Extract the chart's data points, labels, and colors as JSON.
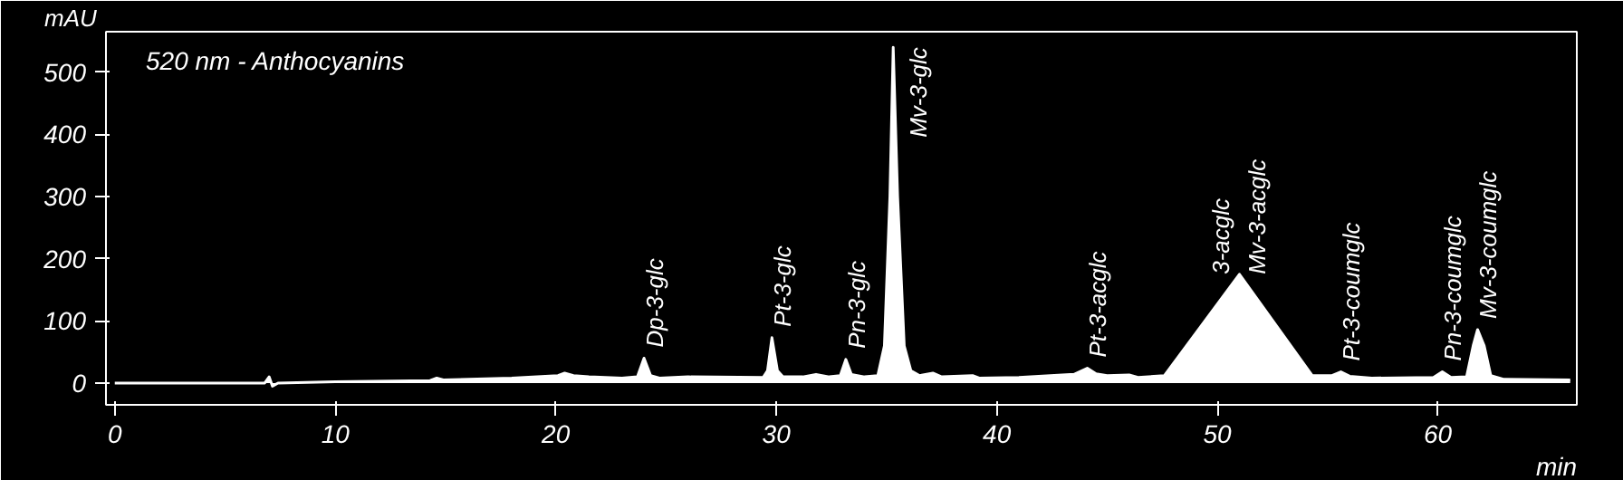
{
  "chart_data": {
    "type": "area",
    "title": "520 nm - Anthocyanins",
    "xlabel": "min",
    "ylabel": "mAU",
    "x": [
      0,
      6.8,
      7.0,
      7.15,
      7.4,
      10,
      14.3,
      14.6,
      14.9,
      18,
      20.1,
      20.4,
      20.8,
      21.5,
      23,
      23.7,
      24.0,
      24.3,
      24.7,
      26,
      29.4,
      29.6,
      29.8,
      30.05,
      30.3,
      31.2,
      31.8,
      32.4,
      32.9,
      33.15,
      33.4,
      34.0,
      34.6,
      34.9,
      35.15,
      35.3,
      35.5,
      35.8,
      36.1,
      36.5,
      37.1,
      37.5,
      38.9,
      39.2,
      41,
      43.5,
      44.1,
      44.5,
      45,
      46,
      46.4,
      47.6,
      51.0,
      54.3,
      55.2,
      55.6,
      56.0,
      57,
      59.8,
      60.2,
      60.6,
      61.3,
      61.6,
      61.8,
      62.1,
      62.4,
      63,
      66
    ],
    "series": [
      {
        "color": "#ffffff",
        "values": [
          0,
          0,
          10,
          -5,
          0,
          2,
          4,
          8,
          5,
          8,
          12,
          16,
          12,
          10,
          8,
          10,
          40,
          12,
          8,
          10,
          9,
          20,
          73,
          20,
          10,
          10,
          14,
          10,
          12,
          38,
          14,
          10,
          12,
          60,
          300,
          540,
          300,
          60,
          20,
          12,
          16,
          10,
          12,
          8,
          9,
          14,
          24,
          15,
          12,
          13,
          9,
          12,
          175,
          12,
          12,
          18,
          11,
          8,
          9,
          18,
          9,
          10,
          60,
          86,
          60,
          12,
          6,
          5
        ]
      }
    ],
    "xlim": [
      -0.4,
      66.3
    ],
    "ylim": [
      -35,
      565
    ],
    "xticks": [
      0,
      10,
      20,
      30,
      40,
      50,
      60
    ],
    "yticks": [
      0,
      100,
      200,
      300,
      400,
      500
    ],
    "grid": false,
    "annotations": [
      {
        "text": "Dp-3-glc",
        "x": 24.0,
        "y": 40
      },
      {
        "text": "Pt-3-glc",
        "x": 29.8,
        "y": 73
      },
      {
        "text": "Pn-3-glc",
        "x": 33.15,
        "y": 38
      },
      {
        "text": "Mv-3-glc",
        "x": 35.3,
        "y": 540
      },
      {
        "text": "Pt-3-acglc",
        "x": 44.1,
        "y": 24
      },
      {
        "text": "3-acglc",
        "x": 51.0,
        "y": 175
      },
      {
        "text": "Mv-3-acglc",
        "x": 51.0,
        "y": 175
      },
      {
        "text": "Pt-3-coumglc",
        "x": 55.6,
        "y": 18
      },
      {
        "text": "Pn-3-coumglc",
        "x": 60.2,
        "y": 18
      },
      {
        "text": "Mv-3-coumglc",
        "x": 61.8,
        "y": 86
      }
    ]
  }
}
